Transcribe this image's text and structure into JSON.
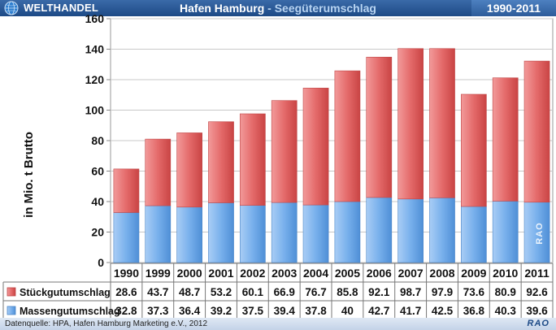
{
  "header": {
    "brand": "WELTHANDEL",
    "title_main": "Hafen Hamburg",
    "title_sep": " - ",
    "title_sub": "Seegüterumschlag",
    "period": "1990-2011"
  },
  "footer": {
    "source": "Datenquelle: HPA, Hafen Hamburg Marketing e.V., 2012",
    "logo": "RAO"
  },
  "watermark": "RAO",
  "colors": {
    "stueckgut": "#e86a6a",
    "massengut": "#6aa6e8",
    "header_bg": "#1d4a86"
  },
  "chart_data": {
    "type": "bar",
    "stacked": true,
    "categories": [
      "1990",
      "1999",
      "2000",
      "2001",
      "2002",
      "2003",
      "2004",
      "2005",
      "2006",
      "2007",
      "2008",
      "2009",
      "2010",
      "2011"
    ],
    "series": [
      {
        "name": "Massengutumschlag",
        "values": [
          32.8,
          37.3,
          36.4,
          39.2,
          37.5,
          39.4,
          37.8,
          40,
          42.7,
          41.7,
          42.5,
          36.8,
          40.3,
          39.6
        ]
      },
      {
        "name": "Stückgutumschlag",
        "values": [
          28.6,
          43.7,
          48.7,
          53.2,
          60.1,
          66.9,
          76.7,
          85.8,
          92.1,
          98.7,
          97.9,
          73.6,
          80.9,
          92.6
        ]
      }
    ],
    "table_labels": [
      "1990",
      "1999",
      "2000",
      "2001",
      "2002",
      "2003",
      "2004",
      "2005",
      "2006",
      "2007",
      "2008",
      "2009",
      "2010",
      "2011"
    ],
    "table_rows": [
      {
        "name": "Stückgutumschlag",
        "cells": [
          "28.6",
          "43.7",
          "48.7",
          "53.2",
          "60.1",
          "66.9",
          "76.7",
          "85.8",
          "92.1",
          "98.7",
          "97.9",
          "73.6",
          "80.9",
          "92.6"
        ]
      },
      {
        "name": "Massengutumschlag",
        "cells": [
          "32.8",
          "37.3",
          "36.4",
          "39.2",
          "37.5",
          "39.4",
          "37.8",
          "40",
          "42.7",
          "41.7",
          "42.5",
          "36.8",
          "40.3",
          "39.6"
        ]
      }
    ],
    "ylabel": "in  Mio. t Brutto",
    "ylim": [
      0,
      160
    ],
    "yticks": [
      0,
      20,
      40,
      60,
      80,
      100,
      120,
      140,
      160
    ],
    "grid": true,
    "legend": "data-table"
  }
}
